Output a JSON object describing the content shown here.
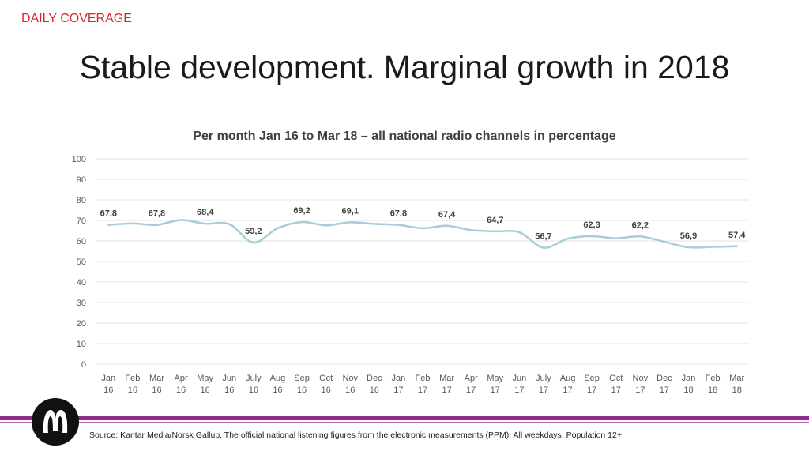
{
  "header": {
    "tag": "DAILY COVERAGE",
    "title": "Stable development. Marginal growth in 2018"
  },
  "footer": {
    "source": "Source: Kantar Media/Norsk Gallup. The official national listening figures from the electronic measurements (PPM). All weekdays. Population 12+",
    "logo_icon": "brand-logo-icon"
  },
  "colors": {
    "line": "#a9ccd9",
    "grid": "#e3e3e3",
    "accent": "#8e2c8e",
    "tag": "#d9262b"
  },
  "chart_data": {
    "type": "line",
    "title": "Per month Jan 16 to Mar 18 – all national radio channels in percentage",
    "xlabel": "",
    "ylabel": "",
    "ylim": [
      0,
      100
    ],
    "yticks": [
      0,
      10,
      20,
      30,
      40,
      50,
      60,
      70,
      80,
      90,
      100
    ],
    "grid": true,
    "legend": "none",
    "categories": [
      [
        "Jan",
        "16"
      ],
      [
        "Feb",
        "16"
      ],
      [
        "Mar",
        "16"
      ],
      [
        "Apr",
        "16"
      ],
      [
        "May",
        "16"
      ],
      [
        "Jun",
        "16"
      ],
      [
        "July",
        "16"
      ],
      [
        "Aug",
        "16"
      ],
      [
        "Sep",
        "16"
      ],
      [
        "Oct",
        "16"
      ],
      [
        "Nov",
        "16"
      ],
      [
        "Dec",
        "16"
      ],
      [
        "Jan",
        "17"
      ],
      [
        "Feb",
        "17"
      ],
      [
        "Mar",
        "17"
      ],
      [
        "Apr",
        "17"
      ],
      [
        "May",
        "17"
      ],
      [
        "Jun",
        "17"
      ],
      [
        "July",
        "17"
      ],
      [
        "Aug",
        "17"
      ],
      [
        "Sep",
        "17"
      ],
      [
        "Oct",
        "17"
      ],
      [
        "Nov",
        "17"
      ],
      [
        "Dec",
        "17"
      ],
      [
        "Jan",
        "18"
      ],
      [
        "Feb",
        "18"
      ],
      [
        "Mar",
        "18"
      ]
    ],
    "values": [
      67.8,
      68.5,
      67.8,
      70.2,
      68.4,
      68.2,
      59.2,
      66.2,
      69.2,
      67.6,
      69.1,
      68.3,
      67.8,
      66.2,
      67.4,
      65.3,
      64.7,
      64.2,
      56.7,
      61.1,
      62.3,
      61.3,
      62.2,
      59.6,
      56.9,
      57.1,
      57.4
    ],
    "data_labels": [
      {
        "index": 0,
        "text": "67,8"
      },
      {
        "index": 2,
        "text": "67,8"
      },
      {
        "index": 4,
        "text": "68,4"
      },
      {
        "index": 6,
        "text": "59,2"
      },
      {
        "index": 8,
        "text": "69,2"
      },
      {
        "index": 10,
        "text": "69,1"
      },
      {
        "index": 12,
        "text": "67,8"
      },
      {
        "index": 14,
        "text": "67,4"
      },
      {
        "index": 16,
        "text": "64,7"
      },
      {
        "index": 18,
        "text": "56,7"
      },
      {
        "index": 20,
        "text": "62,3"
      },
      {
        "index": 22,
        "text": "62,2"
      },
      {
        "index": 24,
        "text": "56,9"
      },
      {
        "index": 26,
        "text": "57,4"
      }
    ]
  }
}
